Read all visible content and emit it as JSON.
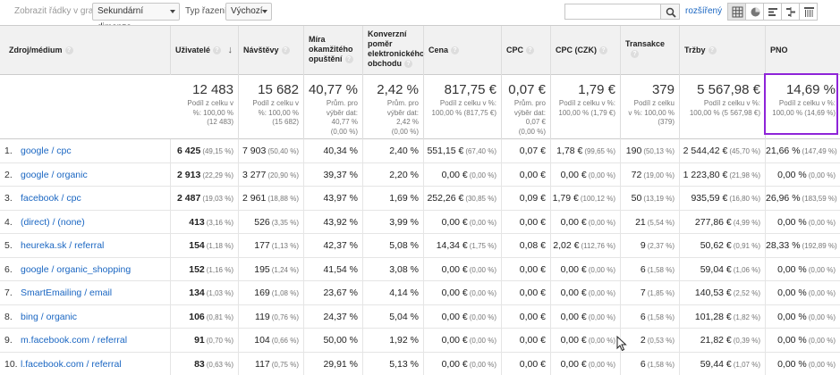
{
  "toolbar": {
    "plot_rows": "Zobrazit řádky v grafu",
    "secondary_dimension": "Sekundární dimenze",
    "sort_type_label": "Typ řazení:",
    "sort_type_value": "Výchozí",
    "search_value": "",
    "advanced": "rozšířený"
  },
  "columns": {
    "source": "Zdroj/médium",
    "users": "Uživatelé",
    "sessions": "Návštěvy",
    "bounce": "Míra okamžitého opuštění",
    "conversion": "Konverzní poměr elektronického obchodu",
    "cost": "Cena",
    "cpc": "CPC",
    "cpc_czk": "CPC (CZK)",
    "transactions": "Transakce",
    "revenue": "Tržby",
    "pno": "PNO"
  },
  "totals": {
    "users": {
      "value": "12 483",
      "sub": [
        "Podíl z celku v",
        "%: 100,00 %",
        "(12 483)"
      ]
    },
    "sessions": {
      "value": "15 682",
      "sub": [
        "Podíl z celku v",
        "%: 100,00 %",
        "(15 682)"
      ]
    },
    "bounce": {
      "value": "40,77 %",
      "sub": [
        "Prům. pro",
        "výběr dat:",
        "40,77 %",
        "(0,00 %)"
      ]
    },
    "conversion": {
      "value": "2,42 %",
      "sub": [
        "Prům. pro",
        "výběr dat:",
        "2,42 %",
        "(0,00 %)"
      ]
    },
    "cost": {
      "value": "817,75 €",
      "sub": [
        "Podíl z celku v %:",
        "100,00 % (817,75 €)"
      ]
    },
    "cpc": {
      "value": "0,07 €",
      "sub": [
        "Prům. pro",
        "výběr dat:",
        "0,07 €",
        "(0,00 %)"
      ]
    },
    "cpc_czk": {
      "value": "1,79 €",
      "sub": [
        "Podíl z celku v %:",
        "100,00 % (1,79 €)"
      ]
    },
    "transactions": {
      "value": "379",
      "sub": [
        "Podíl z celku",
        "v %: 100,00 %",
        "(379)"
      ]
    },
    "revenue": {
      "value": "5 567,98 €",
      "sub": [
        "Podíl z celku v %:",
        "100,00 % (5 567,98 €)"
      ]
    },
    "pno": {
      "value": "14,69 %",
      "sub": [
        "Podíl z celku v %:",
        "100,00 % (14,69 %)"
      ]
    }
  },
  "rows": [
    {
      "idx": "1.",
      "source": "google / cpc",
      "users": "6 425",
      "users_pct": "(49,15 %)",
      "sessions": "7 903",
      "sessions_pct": "(50,40 %)",
      "bounce": "40,34 %",
      "conversion": "2,40 %",
      "cost": "551,15 €",
      "cost_pct": "(67,40 %)",
      "cpc": "0,07 €",
      "cpc_czk": "1,78 €",
      "cpc_czk_pct": "(99,65 %)",
      "transactions": "190",
      "transactions_pct": "(50,13 %)",
      "revenue": "2 544,42 €",
      "revenue_pct": "(45,70 %)",
      "pno": "21,66 %",
      "pno_pct": "(147,49 %)"
    },
    {
      "idx": "2.",
      "source": "google / organic",
      "users": "2 913",
      "users_pct": "(22,29 %)",
      "sessions": "3 277",
      "sessions_pct": "(20,90 %)",
      "bounce": "39,37 %",
      "conversion": "2,20 %",
      "cost": "0,00 €",
      "cost_pct": "(0,00 %)",
      "cpc": "0,00 €",
      "cpc_czk": "0,00 €",
      "cpc_czk_pct": "(0,00 %)",
      "transactions": "72",
      "transactions_pct": "(19,00 %)",
      "revenue": "1 223,80 €",
      "revenue_pct": "(21,98 %)",
      "pno": "0,00 %",
      "pno_pct": "(0,00 %)"
    },
    {
      "idx": "3.",
      "source": "facebook / cpc",
      "users": "2 487",
      "users_pct": "(19,03 %)",
      "sessions": "2 961",
      "sessions_pct": "(18,88 %)",
      "bounce": "43,97 %",
      "conversion": "1,69 %",
      "cost": "252,26 €",
      "cost_pct": "(30,85 %)",
      "cpc": "0,09 €",
      "cpc_czk": "1,79 €",
      "cpc_czk_pct": "(100,12 %)",
      "transactions": "50",
      "transactions_pct": "(13,19 %)",
      "revenue": "935,59 €",
      "revenue_pct": "(16,80 %)",
      "pno": "26,96 %",
      "pno_pct": "(183,59 %)"
    },
    {
      "idx": "4.",
      "source": "(direct) / (none)",
      "users": "413",
      "users_pct": "(3,16 %)",
      "sessions": "526",
      "sessions_pct": "(3,35 %)",
      "bounce": "43,92 %",
      "conversion": "3,99 %",
      "cost": "0,00 €",
      "cost_pct": "(0,00 %)",
      "cpc": "0,00 €",
      "cpc_czk": "0,00 €",
      "cpc_czk_pct": "(0,00 %)",
      "transactions": "21",
      "transactions_pct": "(5,54 %)",
      "revenue": "277,86 €",
      "revenue_pct": "(4,99 %)",
      "pno": "0,00 %",
      "pno_pct": "(0,00 %)"
    },
    {
      "idx": "5.",
      "source": "heureka.sk / referral",
      "users": "154",
      "users_pct": "(1,18 %)",
      "sessions": "177",
      "sessions_pct": "(1,13 %)",
      "bounce": "42,37 %",
      "conversion": "5,08 %",
      "cost": "14,34 €",
      "cost_pct": "(1,75 %)",
      "cpc": "0,08 €",
      "cpc_czk": "2,02 €",
      "cpc_czk_pct": "(112,76 %)",
      "transactions": "9",
      "transactions_pct": "(2,37 %)",
      "revenue": "50,62 €",
      "revenue_pct": "(0,91 %)",
      "pno": "28,33 %",
      "pno_pct": "(192,89 %)"
    },
    {
      "idx": "6.",
      "source": "google / organic_shopping",
      "users": "152",
      "users_pct": "(1,16 %)",
      "sessions": "195",
      "sessions_pct": "(1,24 %)",
      "bounce": "41,54 %",
      "conversion": "3,08 %",
      "cost": "0,00 €",
      "cost_pct": "(0,00 %)",
      "cpc": "0,00 €",
      "cpc_czk": "0,00 €",
      "cpc_czk_pct": "(0,00 %)",
      "transactions": "6",
      "transactions_pct": "(1,58 %)",
      "revenue": "59,04 €",
      "revenue_pct": "(1,06 %)",
      "pno": "0,00 %",
      "pno_pct": "(0,00 %)"
    },
    {
      "idx": "7.",
      "source": "SmartEmailing / email",
      "users": "134",
      "users_pct": "(1,03 %)",
      "sessions": "169",
      "sessions_pct": "(1,08 %)",
      "bounce": "23,67 %",
      "conversion": "4,14 %",
      "cost": "0,00 €",
      "cost_pct": "(0,00 %)",
      "cpc": "0,00 €",
      "cpc_czk": "0,00 €",
      "cpc_czk_pct": "(0,00 %)",
      "transactions": "7",
      "transactions_pct": "(1,85 %)",
      "revenue": "140,53 €",
      "revenue_pct": "(2,52 %)",
      "pno": "0,00 %",
      "pno_pct": "(0,00 %)"
    },
    {
      "idx": "8.",
      "source": "bing / organic",
      "users": "106",
      "users_pct": "(0,81 %)",
      "sessions": "119",
      "sessions_pct": "(0,76 %)",
      "bounce": "24,37 %",
      "conversion": "5,04 %",
      "cost": "0,00 €",
      "cost_pct": "(0,00 %)",
      "cpc": "0,00 €",
      "cpc_czk": "0,00 €",
      "cpc_czk_pct": "(0,00 %)",
      "transactions": "6",
      "transactions_pct": "(1,58 %)",
      "revenue": "101,28 €",
      "revenue_pct": "(1,82 %)",
      "pno": "0,00 %",
      "pno_pct": "(0,00 %)"
    },
    {
      "idx": "9.",
      "source": "m.facebook.com / referral",
      "users": "91",
      "users_pct": "(0,70 %)",
      "sessions": "104",
      "sessions_pct": "(0,66 %)",
      "bounce": "50,00 %",
      "conversion": "1,92 %",
      "cost": "0,00 €",
      "cost_pct": "(0,00 %)",
      "cpc": "0,00 €",
      "cpc_czk": "0,00 €",
      "cpc_czk_pct": "(0,00 %)",
      "transactions": "2",
      "transactions_pct": "(0,53 %)",
      "revenue": "21,82 €",
      "revenue_pct": "(0,39 %)",
      "pno": "0,00 %",
      "pno_pct": "(0,00 %)"
    },
    {
      "idx": "10.",
      "source": "l.facebook.com / referral",
      "users": "83",
      "users_pct": "(0,63 %)",
      "sessions": "117",
      "sessions_pct": "(0,75 %)",
      "bounce": "29,91 %",
      "conversion": "5,13 %",
      "cost": "0,00 €",
      "cost_pct": "(0,00 %)",
      "cpc": "0,00 €",
      "cpc_czk": "0,00 €",
      "cpc_czk_pct": "(0,00 %)",
      "transactions": "6",
      "transactions_pct": "(1,58 %)",
      "revenue": "59,44 €",
      "revenue_pct": "(1,07 %)",
      "pno": "0,00 %",
      "pno_pct": "(0,00 %)"
    }
  ],
  "colors": {
    "link": "#1a66c2",
    "highlight": "#8e24d8",
    "header_bg": "#f1f1f1"
  }
}
